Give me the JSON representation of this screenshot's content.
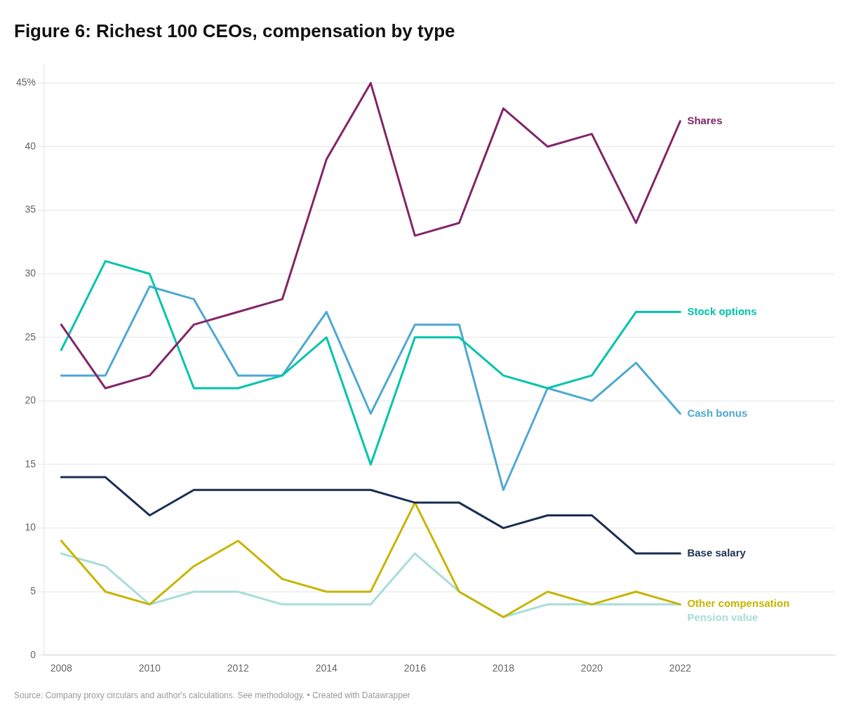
{
  "chart_data": {
    "type": "line",
    "title": "Figure 6: Richest 100 CEOs, compensation by type",
    "source": "Source: Company proxy circulars and author's calculations. See methodology. • Created with Datawrapper",
    "x": [
      2008,
      2009,
      2010,
      2011,
      2012,
      2013,
      2014,
      2015,
      2016,
      2017,
      2018,
      2019,
      2020,
      2021,
      2022
    ],
    "series": [
      {
        "name": "Shares",
        "color": "#822568",
        "values": [
          26,
          21,
          22,
          26,
          27,
          28,
          39,
          45,
          33,
          34,
          43,
          40,
          41,
          34,
          42
        ]
      },
      {
        "name": "Stock options",
        "color": "#00c4aa",
        "values": [
          24,
          31,
          30,
          21,
          21,
          22,
          25,
          15,
          25,
          25,
          22,
          21,
          22,
          27,
          27
        ]
      },
      {
        "name": "Cash bonus",
        "color": "#4ea8d2",
        "values": [
          22,
          22,
          29,
          28,
          22,
          22,
          27,
          19,
          26,
          26,
          13,
          21,
          20,
          23,
          19
        ]
      },
      {
        "name": "Base salary",
        "color": "#1a2e52",
        "values": [
          14,
          14,
          11,
          13,
          13,
          13,
          13,
          13,
          12,
          12,
          10,
          11,
          11,
          8,
          8
        ]
      },
      {
        "name": "Other compensation",
        "color": "#c8b400",
        "values": [
          9,
          5,
          4,
          7,
          9,
          6,
          5,
          5,
          12,
          5,
          3,
          5,
          4,
          5,
          4
        ]
      },
      {
        "name": "Pension value",
        "color": "#a8ddd8",
        "values": [
          8,
          7,
          4,
          5,
          5,
          4,
          4,
          4,
          8,
          5,
          3,
          4,
          4,
          4,
          4
        ]
      }
    ],
    "xlim": [
      2007.6,
      2025.5
    ],
    "xticks": [
      2008,
      2010,
      2012,
      2014,
      2016,
      2018,
      2020,
      2022
    ],
    "ylim": [
      0,
      46.5
    ],
    "yticks": [
      0,
      5,
      10,
      15,
      20,
      25,
      30,
      35,
      40,
      {
        "value": 45,
        "label": "45%"
      }
    ],
    "grid": "y"
  }
}
